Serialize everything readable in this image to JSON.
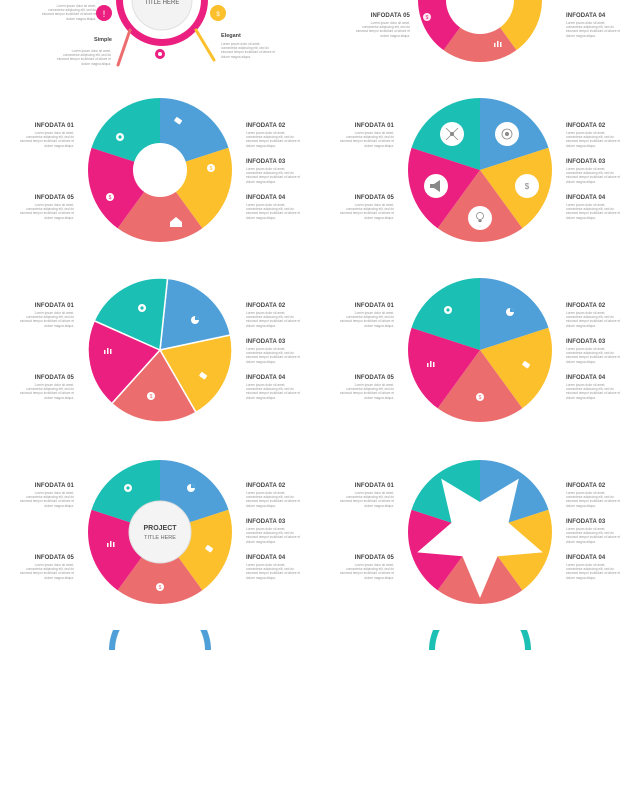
{
  "colors": {
    "teal": "#1cbfb3",
    "blue": "#4fa0d8",
    "yellow": "#fcc02d",
    "salmon": "#ec6d6e",
    "pink": "#ea1f7f"
  },
  "labels": {
    "d1": "INFODATA 01",
    "d2": "INFODATA 02",
    "d3": "INFODATA 03",
    "d4": "INFODATA 04",
    "d5": "INFODATA 05"
  },
  "body_text": "Lorem ipsum dolor sit amet, consectetur adipiscing elit, sed do eiusmod tempor incididunt ut labore et dolore magna aliqua.",
  "top": {
    "title_partial": "TITLE HERE",
    "simple": "Simple",
    "elegant": "Elegant"
  },
  "center": {
    "project": "PROJECT",
    "title": "TITLE HERE"
  },
  "icons": {
    "gear": "gear-icon",
    "pie": "pie-chart-icon",
    "tag": "tag-icon",
    "money": "money-bag-icon",
    "bars": "bar-chart-icon",
    "home": "home-icon",
    "megaphone": "megaphone-icon",
    "network": "network-icon",
    "target": "target-icon",
    "lightbulb": "lightbulb-icon",
    "warning": "warning-icon"
  }
}
